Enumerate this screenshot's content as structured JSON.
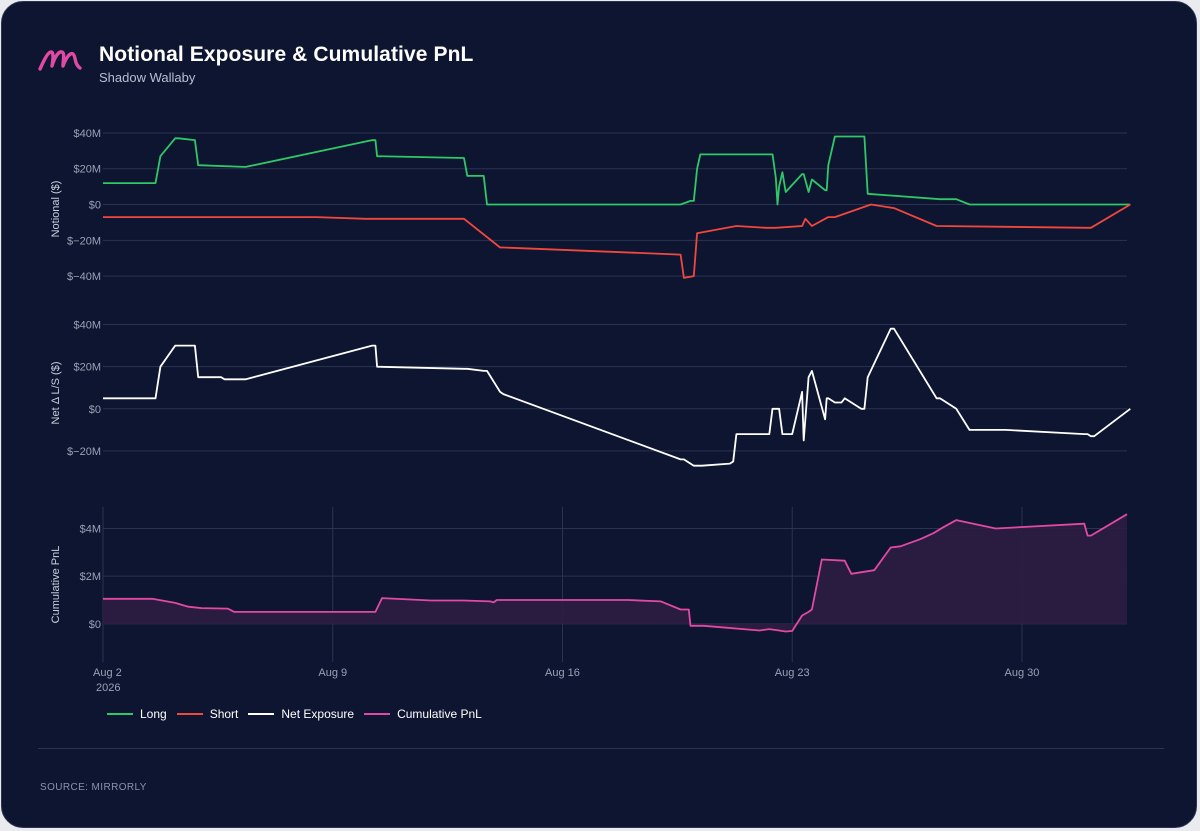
{
  "header": {
    "logo_icon": "mirrorly-m-logo-icon",
    "title": "Notional Exposure & Cumulative PnL",
    "subtitle": "Shadow Wallaby"
  },
  "footer": {
    "source": "SOURCE: MIRRORLY"
  },
  "colors": {
    "background": "#0e1530",
    "grid": "#2a3352",
    "long": "#2ec866",
    "short": "#f0483e",
    "net": "#ffffff",
    "pnl": "#e04aa5",
    "pnl_fill": "#2e1c43",
    "tick_text": "#9aa1b6"
  },
  "chart_data": [
    {
      "type": "line",
      "ylabel": "Notional ($)",
      "ylim": [
        -50,
        45
      ],
      "y_ticks": [
        40,
        20,
        0,
        -20,
        -40
      ],
      "y_tick_labels": [
        "$40M",
        "$20M",
        "$0",
        "$−20M",
        "$−40M"
      ],
      "series": [
        {
          "name": "Long",
          "x": [
            2.0,
            3.5,
            3.6,
            3.75,
            4.2,
            4.3,
            4.8,
            4.9,
            6.3,
            6.35,
            10.2,
            10.3,
            10.35,
            13.0,
            13.1,
            13.6,
            13.7,
            19.6,
            19.9,
            20.0,
            20.1,
            20.2,
            22.4,
            22.5,
            22.55,
            22.6,
            22.7,
            22.8,
            23.3,
            23.35,
            23.5,
            23.6,
            24.0,
            24.05,
            24.1,
            24.3,
            25.2,
            25.3,
            27.5,
            28.0,
            28.4,
            29.5,
            31.9,
            32.0,
            32.1,
            32.2,
            33.3
          ],
          "values": [
            12,
            12,
            12,
            27,
            37,
            37,
            36,
            22,
            21,
            21,
            36,
            36,
            27,
            26,
            16,
            16,
            0,
            0,
            2,
            2,
            20,
            28,
            28,
            15,
            0,
            10,
            18,
            7,
            17,
            17,
            7,
            14,
            8,
            8,
            22,
            38,
            38,
            6,
            3,
            3,
            0,
            0,
            0,
            0,
            0,
            0,
            0
          ]
        },
        {
          "name": "Short",
          "x": [
            2.0,
            5.0,
            5.6,
            8.5,
            10.0,
            13.0,
            14.1,
            14.2,
            19.6,
            19.7,
            20.0,
            20.1,
            21.3,
            22.2,
            22.5,
            23.3,
            23.4,
            23.6,
            24.1,
            24.3,
            25.4,
            26.1,
            27.4,
            32.0,
            32.1,
            33.3
          ],
          "values": [
            -7,
            -7,
            -7,
            -7,
            -8,
            -8,
            -24,
            -24,
            -28,
            -41,
            -40,
            -16,
            -12,
            -13,
            -13,
            -12,
            -8,
            -12,
            -7,
            -7,
            0,
            -2,
            -12,
            -13,
            -13,
            0
          ]
        }
      ]
    },
    {
      "type": "line",
      "ylabel": "Net Δ L/S ($)",
      "ylim": [
        -30,
        45
      ],
      "y_ticks": [
        40,
        20,
        0,
        -20
      ],
      "y_tick_labels": [
        "$40M",
        "$20M",
        "$0",
        "$−20M"
      ],
      "series": [
        {
          "name": "Net Exposure",
          "x": [
            2.0,
            3.5,
            3.6,
            3.75,
            4.2,
            4.3,
            4.8,
            4.9,
            5.6,
            5.7,
            6.3,
            6.35,
            10.2,
            10.3,
            10.35,
            13.0,
            13.1,
            13.6,
            13.7,
            14.1,
            14.2,
            19.6,
            19.7,
            20.0,
            20.1,
            20.2,
            20.25,
            21.1,
            21.2,
            21.3,
            22.2,
            22.3,
            22.4,
            22.5,
            22.55,
            22.6,
            22.7,
            22.8,
            23.0,
            23.3,
            23.35,
            23.5,
            23.6,
            24.0,
            24.05,
            24.1,
            24.3,
            24.5,
            24.6,
            25.1,
            25.2,
            25.3,
            26.0,
            26.1,
            27.4,
            27.5,
            28.0,
            28.4,
            29.5,
            31.9,
            32.0,
            32.1,
            32.2,
            33.3
          ],
          "values": [
            5,
            5,
            5,
            20,
            30,
            30,
            30,
            15,
            15,
            14,
            14,
            14,
            30,
            30,
            20,
            19,
            19,
            18,
            18,
            8,
            7,
            -24,
            -24,
            -27,
            -27,
            -27,
            -27,
            -26,
            -25,
            -12,
            -12,
            -12,
            0,
            0,
            0,
            0,
            -12,
            -12,
            -12,
            8,
            -15,
            15,
            18,
            -5,
            5,
            5,
            3,
            3,
            5,
            0,
            0,
            15,
            38,
            38,
            5,
            5,
            0,
            -10,
            -10,
            -12,
            -12,
            -13,
            -13,
            0
          ]
        }
      ]
    },
    {
      "type": "area",
      "ylabel": "Cumulative PnL",
      "ylim": [
        -1.6,
        4.9
      ],
      "y_ticks": [
        4,
        2,
        0
      ],
      "y_tick_labels": [
        "$4M",
        "$2M",
        "$0"
      ],
      "x_ticks": [
        2,
        9,
        16,
        23,
        30
      ],
      "x_tick_labels": [
        "Aug 2",
        "Aug 9",
        "Aug 16",
        "Aug 23",
        "Aug 30"
      ],
      "x_tick_sublabel": "2026",
      "xlim": [
        2,
        33.2
      ],
      "series": [
        {
          "name": "Cumulative PnL",
          "x": [
            2.0,
            3.0,
            3.5,
            4.2,
            4.6,
            5.0,
            5.8,
            6.0,
            8.0,
            10.0,
            10.3,
            10.5,
            12.0,
            13.0,
            13.8,
            13.9,
            14.0,
            18.0,
            19.0,
            19.6,
            19.7,
            19.8,
            19.85,
            19.9,
            20.0,
            20.05,
            20.3,
            22.0,
            22.3,
            22.6,
            22.8,
            23.0,
            23.3,
            23.5,
            23.6,
            23.9,
            24.6,
            24.8,
            25.5,
            26.0,
            26.3,
            26.9,
            27.3,
            27.6,
            28.0,
            29.2,
            31.9,
            32.0,
            32.1,
            33.2
          ],
          "values": [
            1.05,
            1.05,
            1.05,
            0.88,
            0.72,
            0.66,
            0.64,
            0.5,
            0.5,
            0.5,
            0.5,
            1.08,
            0.98,
            0.98,
            0.94,
            0.9,
            1.0,
            1.0,
            0.94,
            0.6,
            0.6,
            0.6,
            0.6,
            -0.08,
            -0.08,
            -0.08,
            -0.08,
            -0.28,
            -0.22,
            -0.28,
            -0.32,
            -0.3,
            0.35,
            0.5,
            0.6,
            2.7,
            2.65,
            2.1,
            2.25,
            3.2,
            3.25,
            3.55,
            3.8,
            4.05,
            4.35,
            4.0,
            4.2,
            3.7,
            3.7,
            4.6
          ]
        }
      ]
    }
  ]
}
